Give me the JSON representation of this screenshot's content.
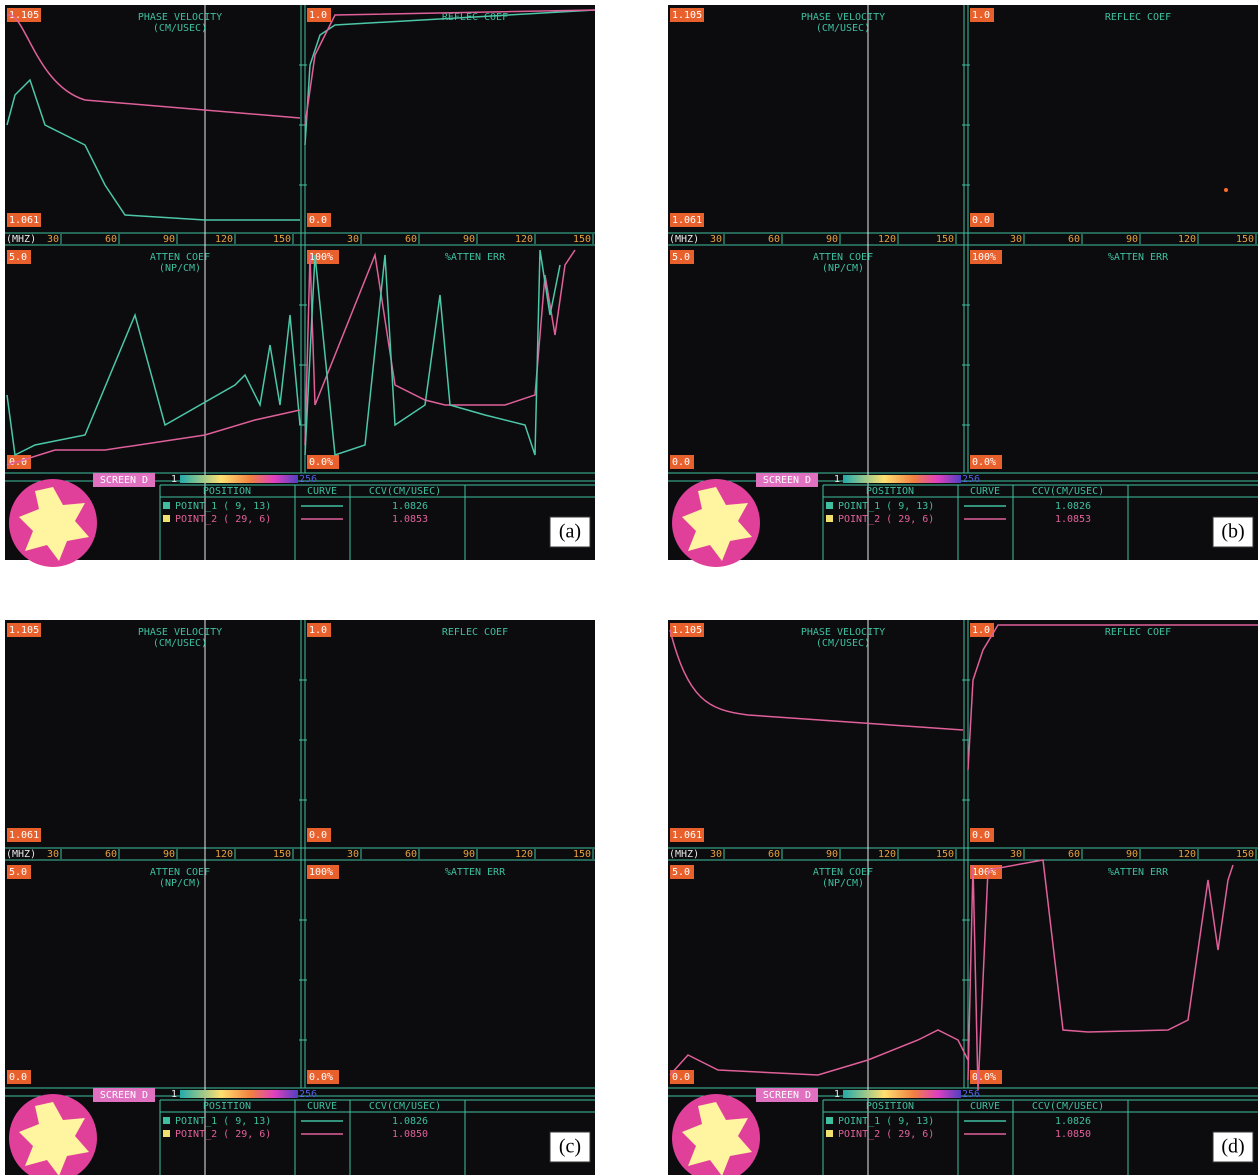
{
  "screen": {
    "pv_title": "PHASE VELOCITY",
    "pv_unit": "(CM/USEC)",
    "pv_max": "1.105",
    "pv_min": "1.061",
    "rc_title": "REFLEC COEF",
    "rc_max": "1.0",
    "rc_min": "0.0",
    "freq_unit": "(MHZ)",
    "freq_ticks": [
      30,
      60,
      90,
      120,
      150
    ],
    "ac_title": "ATTEN COEF",
    "ac_unit": "(NP/CM)",
    "ac_max": "5.0",
    "ac_min": "0.0",
    "ae_title": "%ATTEN ERR",
    "ae_max": "100%",
    "ae_min": "0.0%",
    "screen_name": "SCREEN D",
    "scale_min": "1",
    "scale_max": "256",
    "headers": [
      "POSITION",
      "CURVE",
      "CCV(CM/USEC)"
    ],
    "points": [
      "POINT_1 (  9, 13)",
      "POINT_2 ( 29,  6)"
    ]
  },
  "panels": [
    {
      "label": "(a)",
      "ccv": [
        "1.0826",
        "1.0853"
      ]
    },
    {
      "label": "(b)",
      "ccv": [
        "1.0826",
        "1.0853"
      ]
    },
    {
      "label": "(c)",
      "ccv": [
        "1.0826",
        "1.0850"
      ]
    },
    {
      "label": "(d)",
      "ccv": [
        "1.0826",
        "1.0850"
      ]
    }
  ]
}
